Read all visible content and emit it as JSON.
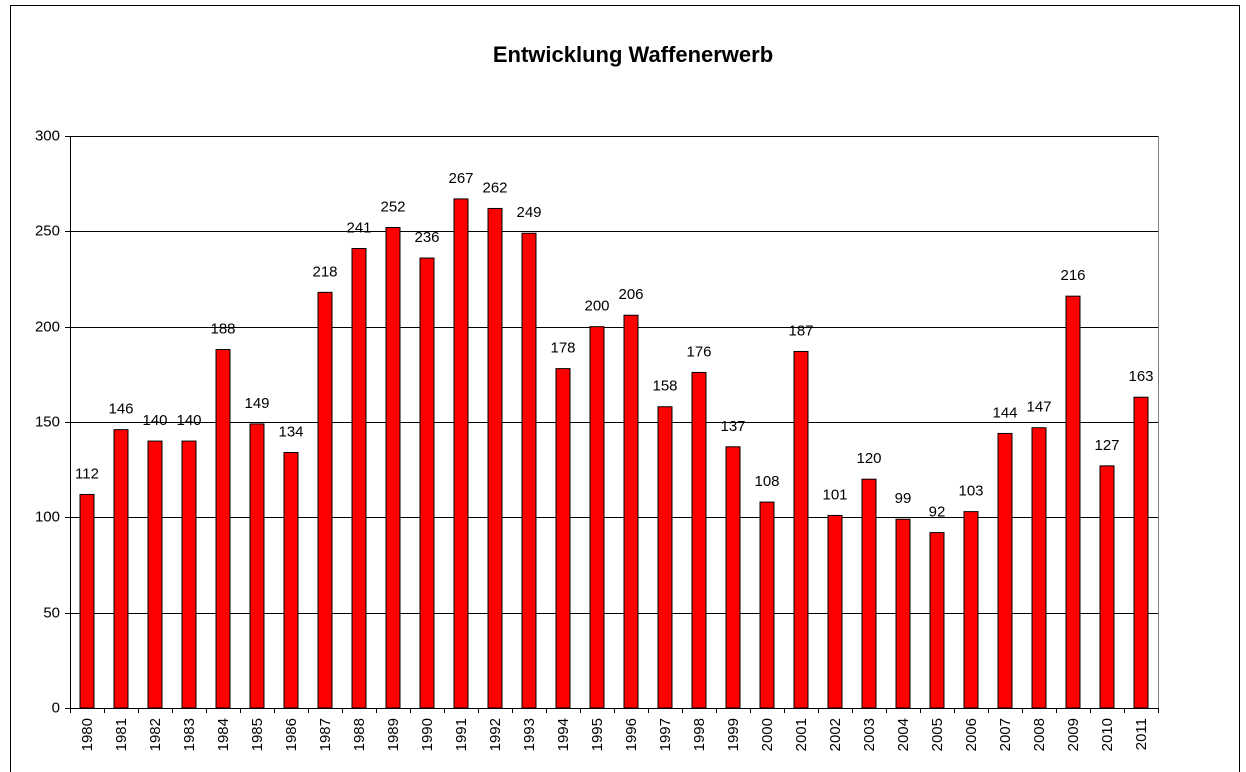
{
  "chart_data": {
    "type": "bar",
    "title": "Entwicklung Waffenerwerb",
    "categories": [
      "1980",
      "1981",
      "1982",
      "1983",
      "1984",
      "1985",
      "1986",
      "1987",
      "1988",
      "1989",
      "1990",
      "1991",
      "1992",
      "1993",
      "1994",
      "1995",
      "1996",
      "1997",
      "1998",
      "1999",
      "2000",
      "2001",
      "2002",
      "2003",
      "2004",
      "2005",
      "2006",
      "2007",
      "2008",
      "2009",
      "2010",
      "2011"
    ],
    "values": [
      112,
      146,
      140,
      140,
      188,
      149,
      134,
      218,
      241,
      252,
      236,
      267,
      262,
      249,
      178,
      200,
      206,
      158,
      176,
      137,
      108,
      187,
      101,
      120,
      99,
      92,
      103,
      144,
      147,
      216,
      127,
      163
    ],
    "color": "#ff0000",
    "ylim": [
      0,
      300
    ],
    "yticks": [
      0,
      50,
      100,
      150,
      200,
      250,
      300
    ],
    "grid": true
  }
}
